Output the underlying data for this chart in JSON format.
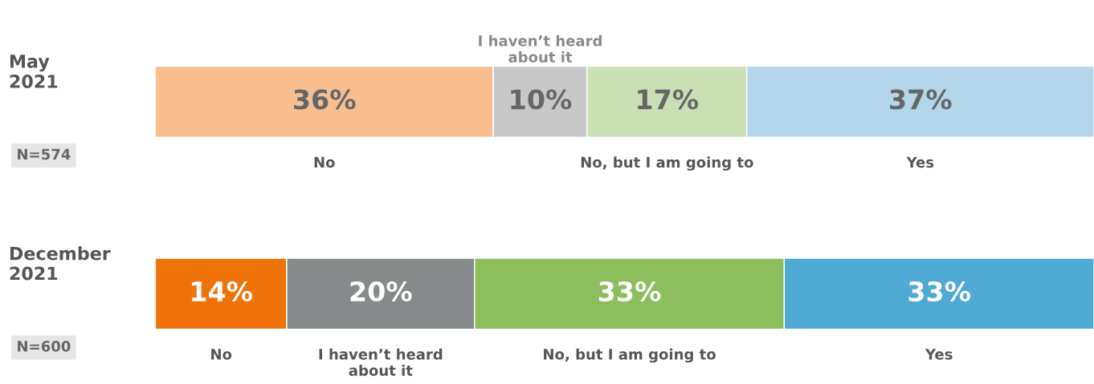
{
  "chart_data": {
    "type": "bar",
    "orientation": "horizontal",
    "stacked": true,
    "legend": false,
    "categories": [
      "May 2021",
      "December 2021"
    ],
    "series": [
      {
        "name": "No",
        "colors": [
          "#f8be8f",
          "#ef7309"
        ],
        "values": [
          36,
          14
        ],
        "value_labels": [
          "36%",
          "14%"
        ]
      },
      {
        "name": "I haven’t heard about it",
        "colors": [
          "#c8c8c8",
          "#878a8b"
        ],
        "values": [
          10,
          20
        ],
        "value_labels": [
          "10%",
          "20%"
        ]
      },
      {
        "name": "No, but I am going to",
        "colors": [
          "#cadfb4",
          "#8dbe5d"
        ],
        "values": [
          17,
          33
        ],
        "value_labels": [
          "17%",
          "33%"
        ]
      },
      {
        "name": "Yes",
        "colors": [
          "#b4d6ea",
          "#4faad3"
        ],
        "values": [
          37,
          33
        ],
        "value_labels": [
          "37%",
          "33%"
        ]
      }
    ],
    "annotations": [
      "N=574",
      "N=600"
    ]
  }
}
